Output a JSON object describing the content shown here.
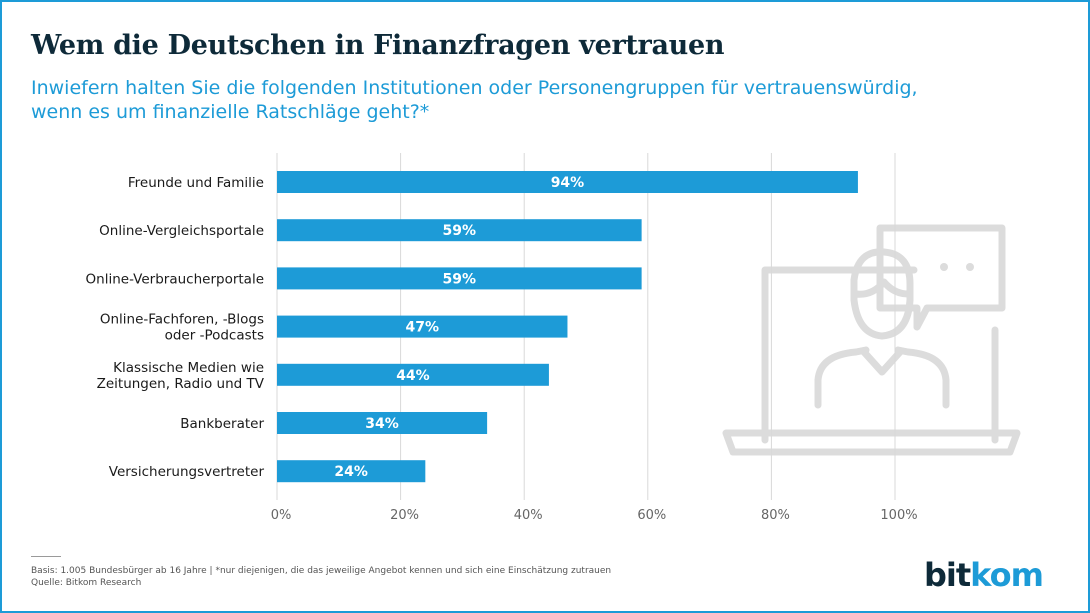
{
  "title": "Wem die Deutschen in Finanzfragen vertrauen",
  "subtitle_line1": "Inwiefern halten Sie die folgenden Institutionen oder Personengruppen für vertrauenswürdig,",
  "subtitle_line2": "wenn es um finanzielle Ratschläge geht?*",
  "footnote_line1": "Basis: 1.005 Bundesbürger ab 16 Jahre | *nur diejenigen, die das jeweilige Angebot kennen und sich eine Einschätzung zutrauen",
  "footnote_line2": "Quelle: Bitkom Research",
  "logo": {
    "part1": "bit",
    "part2": "kom"
  },
  "colors": {
    "bar": "#1d9bd7",
    "title": "#0e2a39",
    "subtitle": "#1d9bd7",
    "grid": "#d9d9d9",
    "illustration": "#dcdcdc"
  },
  "illustration_icon": "person-at-laptop-with-speech-bubble-icon",
  "chart_data": {
    "type": "bar",
    "orientation": "horizontal",
    "categories": [
      [
        "Freunde und Familie"
      ],
      [
        "Online-Vergleichsportale"
      ],
      [
        "Online-Verbraucherportale"
      ],
      [
        "Online-Fachforen, -Blogs",
        "oder -Podcasts"
      ],
      [
        "Klassische Medien wie",
        "Zeitungen, Radio und TV"
      ],
      [
        "Bankberater"
      ],
      [
        "Versicherungsvertreter"
      ]
    ],
    "values": [
      94,
      59,
      59,
      47,
      44,
      34,
      24
    ],
    "value_labels": [
      "94%",
      "59%",
      "59%",
      "47%",
      "44%",
      "34%",
      "24%"
    ],
    "xlim": [
      0,
      100
    ],
    "xticks": [
      0,
      20,
      40,
      60,
      80,
      100
    ],
    "xtick_labels": [
      "0%",
      "20%",
      "40%",
      "60%",
      "80%",
      "100%"
    ],
    "grid": "vertical",
    "legend": "none"
  }
}
